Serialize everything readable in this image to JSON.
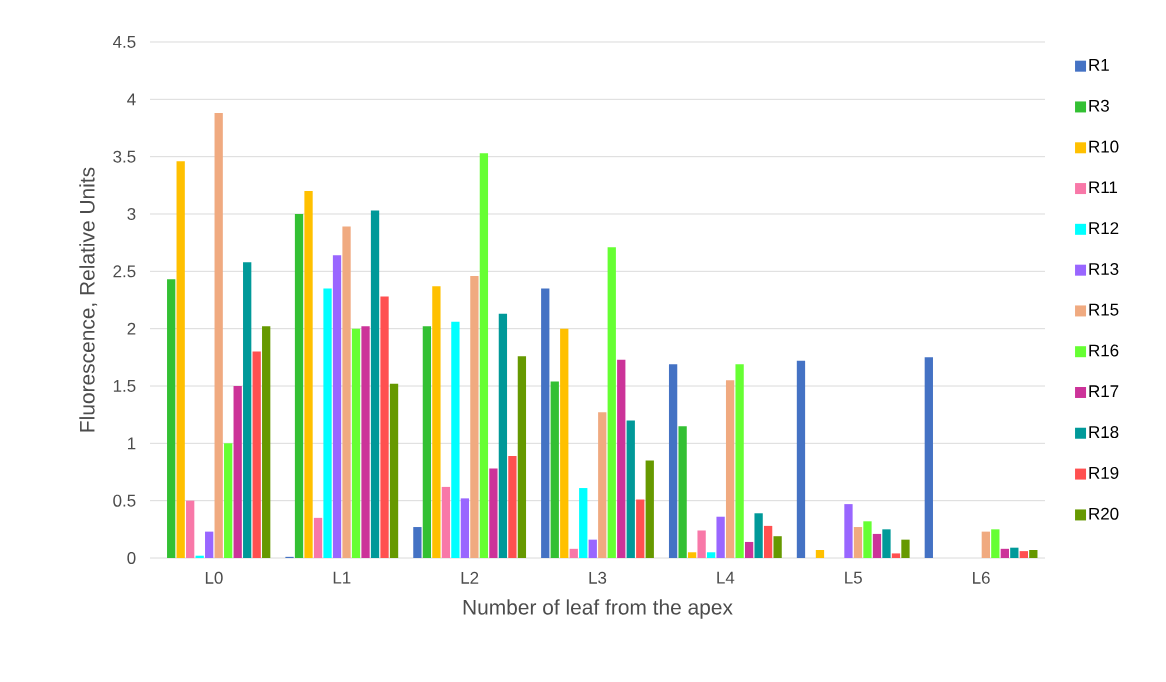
{
  "chart_data": {
    "type": "bar",
    "xlabel": "Number of leaf from the apex",
    "ylabel": "Fluorescence, Relative Units",
    "categories": [
      "L0",
      "L1",
      "L2",
      "L3",
      "L4",
      "L5",
      "L6"
    ],
    "ylim": [
      0,
      4.5
    ],
    "yticks": [
      0,
      0.5,
      1,
      1.5,
      2,
      2.5,
      3,
      3.5,
      4,
      4.5
    ],
    "grid": "y",
    "legend": "right",
    "series": [
      {
        "name": "R1",
        "color": "#4472c4",
        "values": [
          0,
          0.01,
          0.27,
          2.35,
          1.69,
          1.72,
          1.75
        ]
      },
      {
        "name": "R3",
        "color": "#33c033",
        "values": [
          2.43,
          3.0,
          2.02,
          1.54,
          1.15,
          0,
          0
        ]
      },
      {
        "name": "R10",
        "color": "#ffc000",
        "values": [
          3.46,
          3.2,
          2.37,
          2.0,
          0.05,
          0.07,
          0
        ]
      },
      {
        "name": "R11",
        "color": "#f878a8",
        "values": [
          0.5,
          0.35,
          0.62,
          0.08,
          0.24,
          0,
          0
        ]
      },
      {
        "name": "R12",
        "color": "#00ffff",
        "values": [
          0.02,
          2.35,
          2.06,
          0.61,
          0.05,
          0,
          0
        ]
      },
      {
        "name": "R13",
        "color": "#9966ff",
        "values": [
          0.23,
          2.64,
          0.52,
          0.16,
          0.36,
          0.47,
          0
        ]
      },
      {
        "name": "R15",
        "color": "#f0aa80",
        "values": [
          3.88,
          2.89,
          2.46,
          1.27,
          1.55,
          0.27,
          0.23
        ]
      },
      {
        "name": "R16",
        "color": "#66ff33",
        "values": [
          1.0,
          2.0,
          3.53,
          2.71,
          1.69,
          0.32,
          0.25
        ]
      },
      {
        "name": "R17",
        "color": "#cc3399",
        "values": [
          1.5,
          2.02,
          0.78,
          1.73,
          0.14,
          0.21,
          0.08
        ]
      },
      {
        "name": "R18",
        "color": "#009999",
        "values": [
          2.58,
          3.03,
          2.13,
          1.2,
          0.39,
          0.25,
          0.09
        ]
      },
      {
        "name": "R19",
        "color": "#ff5050",
        "values": [
          1.8,
          2.28,
          0.89,
          0.51,
          0.28,
          0.04,
          0.06
        ]
      },
      {
        "name": "R20",
        "color": "#669900",
        "values": [
          2.02,
          1.52,
          1.76,
          0.85,
          0.19,
          0.16,
          0.07
        ]
      }
    ]
  }
}
